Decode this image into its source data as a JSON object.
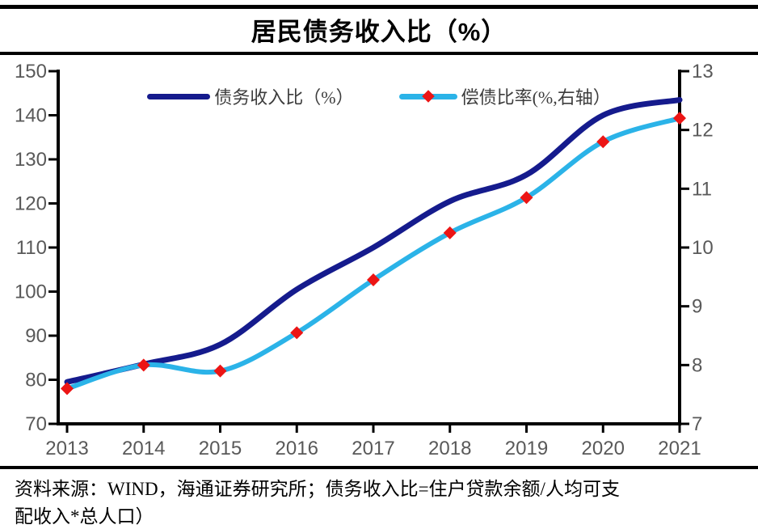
{
  "title": "居民债务收入比（%）",
  "legend": [
    {
      "label": "债务收入比（%）",
      "color": "#151B8D",
      "swatch": "line"
    },
    {
      "label": "偿债比率(%,右轴）",
      "color": "#2BB3E8",
      "swatch": "line-with-diamond",
      "marker_color": "#EC1515"
    }
  ],
  "source_note": "资料来源：WIND，海通证券研究所；债务收入比=住户贷款余额/人均可支\n配收入*总人口）",
  "colors": {
    "debt_income_line": "#151B8D",
    "debt_service_line": "#2BB3E8",
    "marker_red": "#EC1515",
    "axis_line": "#000000",
    "tick_label": "#595959",
    "rule_black": "#000000"
  },
  "chart_data": {
    "type": "line",
    "title": "居民债务收入比（%）",
    "categories": [
      "2013",
      "2014",
      "2015",
      "2016",
      "2017",
      "2018",
      "2019",
      "2020",
      "2021"
    ],
    "series": [
      {
        "name": "债务收入比（%）",
        "axis": "left",
        "color": "#151B8D",
        "line_width": 7,
        "marker": "none",
        "values": [
          79.5,
          83.5,
          88,
          100.5,
          110,
          120.5,
          126.5,
          140,
          143.5
        ]
      },
      {
        "name": "偿债比率(%,右轴）",
        "axis": "right",
        "color": "#2BB3E8",
        "line_width": 6,
        "marker": "diamond",
        "marker_color": "#EC1515",
        "values": [
          7.6,
          8.0,
          7.9,
          8.55,
          9.45,
          10.25,
          10.85,
          11.8,
          12.2
        ]
      }
    ],
    "left_axis": {
      "range": [
        70,
        150
      ],
      "ticks": [
        70,
        80,
        90,
        100,
        110,
        120,
        130,
        140,
        150
      ]
    },
    "right_axis": {
      "range": [
        7,
        13
      ],
      "ticks": [
        7,
        8,
        9,
        10,
        11,
        12,
        13
      ]
    },
    "grid": false,
    "legend_position": "top-center"
  }
}
